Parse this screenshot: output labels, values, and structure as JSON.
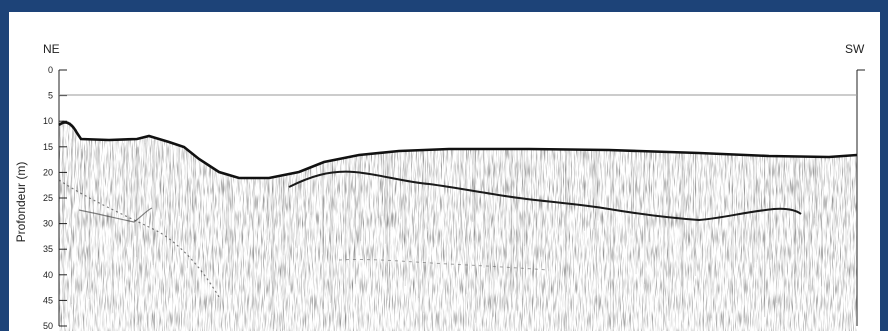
{
  "figure": {
    "left_label": "NE",
    "right_label": "SW",
    "ylabel": "Profondeur (m)",
    "y_ticks": [
      "0",
      "5",
      "10",
      "15",
      "20",
      "25",
      "30",
      "35",
      "40",
      "45",
      "50"
    ],
    "reference_line_depth_m": 5,
    "colors": {
      "border": "#1d4378",
      "background": "#ffffff",
      "ink": "#111111",
      "reference_line": "#9a9a9a"
    }
  }
}
